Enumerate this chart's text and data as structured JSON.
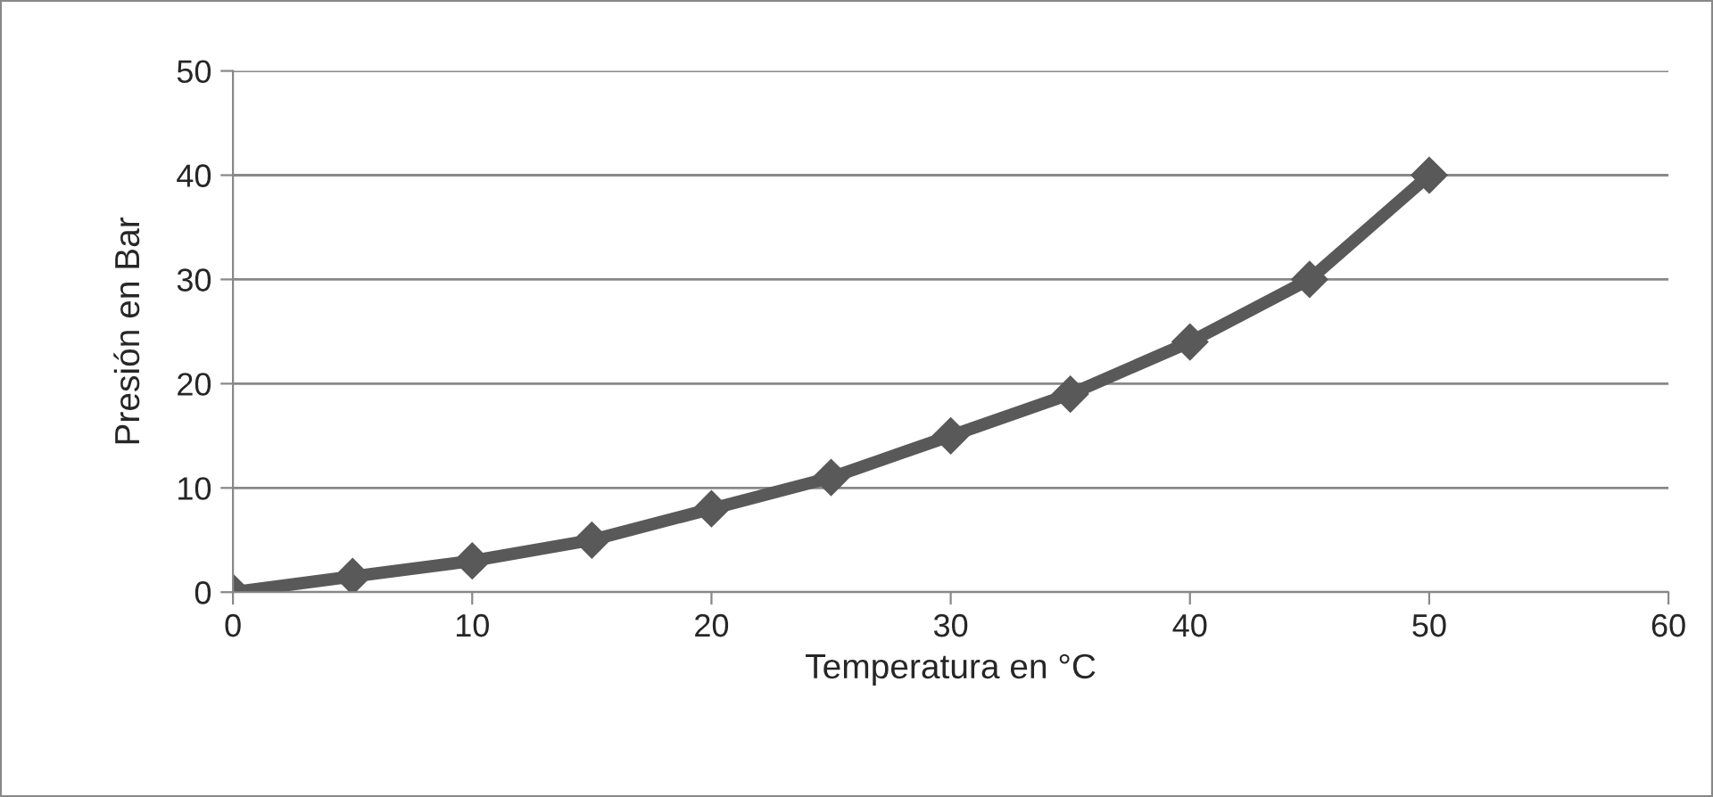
{
  "chart_data": {
    "type": "line",
    "xlabel": "Temperatura en °C",
    "ylabel": "Presión en Bar",
    "x": [
      0,
      5,
      10,
      15,
      20,
      25,
      30,
      35,
      40,
      45,
      50
    ],
    "series": [
      {
        "color": "#595959",
        "values": [
          0,
          1.5,
          3,
          5,
          8,
          11,
          15,
          19,
          24,
          30,
          40
        ]
      }
    ],
    "xlim": [
      0,
      60
    ],
    "xticks": [
      0,
      10,
      20,
      30,
      40,
      50,
      60
    ],
    "ylim": [
      0,
      50
    ],
    "yticks": [
      0,
      10,
      20,
      30,
      40,
      50
    ],
    "grid": "y",
    "marker": "diamond",
    "line_style": "solid"
  }
}
